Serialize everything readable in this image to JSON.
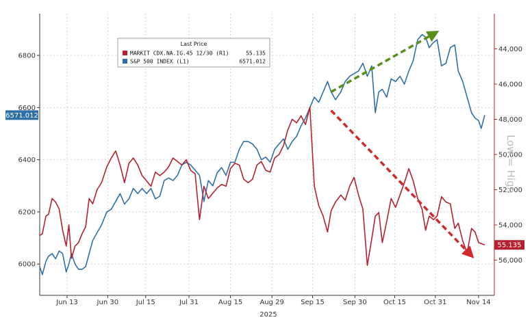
{
  "chart_data": {
    "type": "line",
    "x_label": "2025",
    "x_ticks": [
      "Jun 13",
      "Jun 30",
      "Jul 15",
      "Jul 31",
      "Aug 15",
      "Aug 29",
      "Sep 15",
      "Sep 30",
      "Oct 15",
      "Oct 31",
      "Nov 14"
    ],
    "y_left_ticks": [
      "6000",
      "6200",
      "6400",
      "6600",
      "6800"
    ],
    "y_right_ticks": [
      "44,000",
      "46,000",
      "48,000",
      "50,000",
      "52,000",
      "54,000",
      "56,000"
    ],
    "y_right_label": "Low = High",
    "y_left_range": [
      5880,
      6960
    ],
    "y_right_range": [
      42000,
      58000
    ],
    "y_right_inverted": true,
    "legend": {
      "title": "Last Price",
      "placement": "top-center",
      "items": [
        {
          "name": "MARKIT CDX.NA.IG.45 12/30  (R1)",
          "value": "55.135",
          "color": "#b5202e"
        },
        {
          "name": "S&P 500 INDEX  (L1)",
          "value": "6571.012",
          "color": "#2f6fa8"
        }
      ]
    },
    "last_value_badges": {
      "left": "6571.012",
      "right": "55.135"
    },
    "series": [
      {
        "name": "S&P 500 INDEX",
        "axis": "left",
        "color": "#2f6fa8",
        "values": [
          [
            0,
            5990
          ],
          [
            3,
            5960
          ],
          [
            7,
            6010
          ],
          [
            10,
            6030
          ],
          [
            14,
            6040
          ],
          [
            18,
            6020
          ],
          [
            22,
            6050
          ],
          [
            26,
            6040
          ],
          [
            30,
            5970
          ],
          [
            33,
            6000
          ],
          [
            36,
            6040
          ],
          [
            40,
            6000
          ],
          [
            44,
            5980
          ],
          [
            48,
            5980
          ],
          [
            52,
            5990
          ],
          [
            56,
            6040
          ],
          [
            60,
            6090
          ],
          [
            65,
            6120
          ],
          [
            70,
            6150
          ],
          [
            76,
            6200
          ],
          [
            81,
            6210
          ],
          [
            86,
            6240
          ],
          [
            91,
            6270
          ],
          [
            96,
            6230
          ],
          [
            101,
            6250
          ],
          [
            106,
            6290
          ],
          [
            111,
            6270
          ],
          [
            116,
            6290
          ],
          [
            121,
            6270
          ],
          [
            126,
            6290
          ],
          [
            131,
            6250
          ],
          [
            136,
            6260
          ],
          [
            141,
            6320
          ],
          [
            146,
            6330
          ],
          [
            151,
            6320
          ],
          [
            156,
            6340
          ],
          [
            161,
            6380
          ],
          [
            166,
            6390
          ],
          [
            171,
            6380
          ],
          [
            176,
            6360
          ],
          [
            181,
            6340
          ],
          [
            186,
            6240
          ],
          [
            191,
            6320
          ],
          [
            196,
            6300
          ],
          [
            201,
            6350
          ],
          [
            206,
            6370
          ],
          [
            211,
            6340
          ],
          [
            216,
            6390
          ],
          [
            221,
            6390
          ],
          [
            226,
            6440
          ],
          [
            231,
            6470
          ],
          [
            236,
            6470
          ],
          [
            241,
            6460
          ],
          [
            246,
            6440
          ],
          [
            251,
            6400
          ],
          [
            256,
            6410
          ],
          [
            261,
            6390
          ],
          [
            266,
            6440
          ],
          [
            271,
            6460
          ],
          [
            276,
            6480
          ],
          [
            281,
            6440
          ],
          [
            286,
            6470
          ],
          [
            291,
            6490
          ],
          [
            296,
            6530
          ],
          [
            301,
            6560
          ],
          [
            306,
            6600
          ],
          [
            311,
            6640
          ],
          [
            316,
            6620
          ],
          [
            321,
            6660
          ],
          [
            326,
            6700
          ],
          [
            330,
            6660
          ],
          [
            335,
            6630
          ],
          [
            341,
            6660
          ],
          [
            346,
            6700
          ],
          [
            351,
            6720
          ],
          [
            356,
            6730
          ],
          [
            361,
            6740
          ],
          [
            366,
            6770
          ],
          [
            371,
            6720
          ],
          [
            376,
            6760
          ],
          [
            380,
            6580
          ],
          [
            384,
            6660
          ],
          [
            388,
            6670
          ],
          [
            393,
            6640
          ],
          [
            398,
            6710
          ],
          [
            403,
            6700
          ],
          [
            408,
            6720
          ],
          [
            413,
            6690
          ],
          [
            418,
            6740
          ],
          [
            423,
            6780
          ],
          [
            428,
            6860
          ],
          [
            433,
            6880
          ],
          [
            437,
            6870
          ],
          [
            441,
            6830
          ],
          [
            446,
            6850
          ],
          [
            450,
            6860
          ],
          [
            455,
            6760
          ],
          [
            460,
            6770
          ],
          [
            465,
            6830
          ],
          [
            470,
            6840
          ],
          [
            474,
            6740
          ],
          [
            479,
            6700
          ],
          [
            484,
            6640
          ],
          [
            489,
            6580
          ],
          [
            493,
            6560
          ],
          [
            497,
            6550
          ],
          [
            500,
            6520
          ],
          [
            504,
            6571
          ]
        ]
      },
      {
        "name": "MARKIT CDX.NA.IG.45 12/30",
        "axis": "right",
        "color": "#b5202e",
        "values": [
          [
            0,
            54.6
          ],
          [
            3,
            54.5
          ],
          [
            7,
            53.5
          ],
          [
            10,
            53.4
          ],
          [
            14,
            52.5
          ],
          [
            18,
            52.7
          ],
          [
            22,
            53.1
          ],
          [
            26,
            54.3
          ],
          [
            30,
            55.2
          ],
          [
            33,
            54.0
          ],
          [
            36,
            55.9
          ],
          [
            40,
            55.2
          ],
          [
            44,
            55.0
          ],
          [
            48,
            54.5
          ],
          [
            52,
            54.1
          ],
          [
            56,
            52.5
          ],
          [
            60,
            52.8
          ],
          [
            65,
            52.0
          ],
          [
            70,
            51.6
          ],
          [
            76,
            50.7
          ],
          [
            81,
            50.2
          ],
          [
            86,
            49.8
          ],
          [
            91,
            50.6
          ],
          [
            96,
            51.6
          ],
          [
            101,
            50.5
          ],
          [
            106,
            50.2
          ],
          [
            111,
            50.6
          ],
          [
            116,
            51.2
          ],
          [
            121,
            51.5
          ],
          [
            126,
            51.8
          ],
          [
            131,
            51.0
          ],
          [
            136,
            51.2
          ],
          [
            141,
            51.0
          ],
          [
            146,
            50.7
          ],
          [
            151,
            50.2
          ],
          [
            156,
            50.4
          ],
          [
            161,
            50.6
          ],
          [
            166,
            50.3
          ],
          [
            171,
            50.9
          ],
          [
            176,
            51.1
          ],
          [
            181,
            53.7
          ],
          [
            186,
            51.8
          ],
          [
            191,
            52.5
          ],
          [
            196,
            52.2
          ],
          [
            201,
            51.9
          ],
          [
            206,
            51.7
          ],
          [
            211,
            51.8
          ],
          [
            216,
            50.8
          ],
          [
            221,
            50.5
          ],
          [
            226,
            50.6
          ],
          [
            231,
            51.4
          ],
          [
            236,
            51.6
          ],
          [
            241,
            51.4
          ],
          [
            246,
            50.6
          ],
          [
            251,
            50.4
          ],
          [
            256,
            50.9
          ],
          [
            261,
            51.0
          ],
          [
            266,
            50.2
          ],
          [
            271,
            50.0
          ],
          [
            276,
            49.5
          ],
          [
            281,
            48.6
          ],
          [
            286,
            48.0
          ],
          [
            291,
            48.2
          ],
          [
            296,
            47.8
          ],
          [
            301,
            48.3
          ],
          [
            306,
            47.3
          ],
          [
            311,
            51.8
          ],
          [
            316,
            52.9
          ],
          [
            321,
            53.5
          ],
          [
            326,
            54.4
          ],
          [
            330,
            53.2
          ],
          [
            335,
            52.7
          ],
          [
            341,
            52.3
          ],
          [
            346,
            52.6
          ],
          [
            351,
            51.8
          ],
          [
            356,
            51.3
          ],
          [
            361,
            52.3
          ],
          [
            366,
            53.1
          ],
          [
            371,
            56.3
          ],
          [
            376,
            54.8
          ],
          [
            380,
            53.5
          ],
          [
            384,
            53.3
          ],
          [
            388,
            55.0
          ],
          [
            393,
            53.8
          ],
          [
            398,
            52.5
          ],
          [
            403,
            53.0
          ],
          [
            408,
            52.3
          ],
          [
            413,
            51.6
          ],
          [
            418,
            50.8
          ],
          [
            423,
            51.5
          ],
          [
            428,
            52.5
          ],
          [
            433,
            53.1
          ],
          [
            437,
            54.3
          ],
          [
            441,
            53.5
          ],
          [
            446,
            53.7
          ],
          [
            450,
            53.5
          ],
          [
            455,
            52.4
          ],
          [
            460,
            52.7
          ],
          [
            465,
            52.8
          ],
          [
            470,
            54.2
          ],
          [
            474,
            53.9
          ],
          [
            479,
            54.9
          ],
          [
            484,
            55.6
          ],
          [
            489,
            54.2
          ],
          [
            493,
            54.4
          ],
          [
            497,
            55.0
          ],
          [
            504,
            55.135
          ]
        ]
      }
    ],
    "annotations": [
      {
        "type": "arrow",
        "color": "#5a8f1c",
        "style": "dashed",
        "from": [
          330,
          6660
        ],
        "to": [
          450,
          6890
        ],
        "axis": "left"
      },
      {
        "type": "arrow",
        "color": "#d02a2a",
        "style": "dashed",
        "from": [
          330,
          47.5
        ],
        "to": [
          490,
          55.8
        ],
        "axis": "right"
      }
    ]
  }
}
